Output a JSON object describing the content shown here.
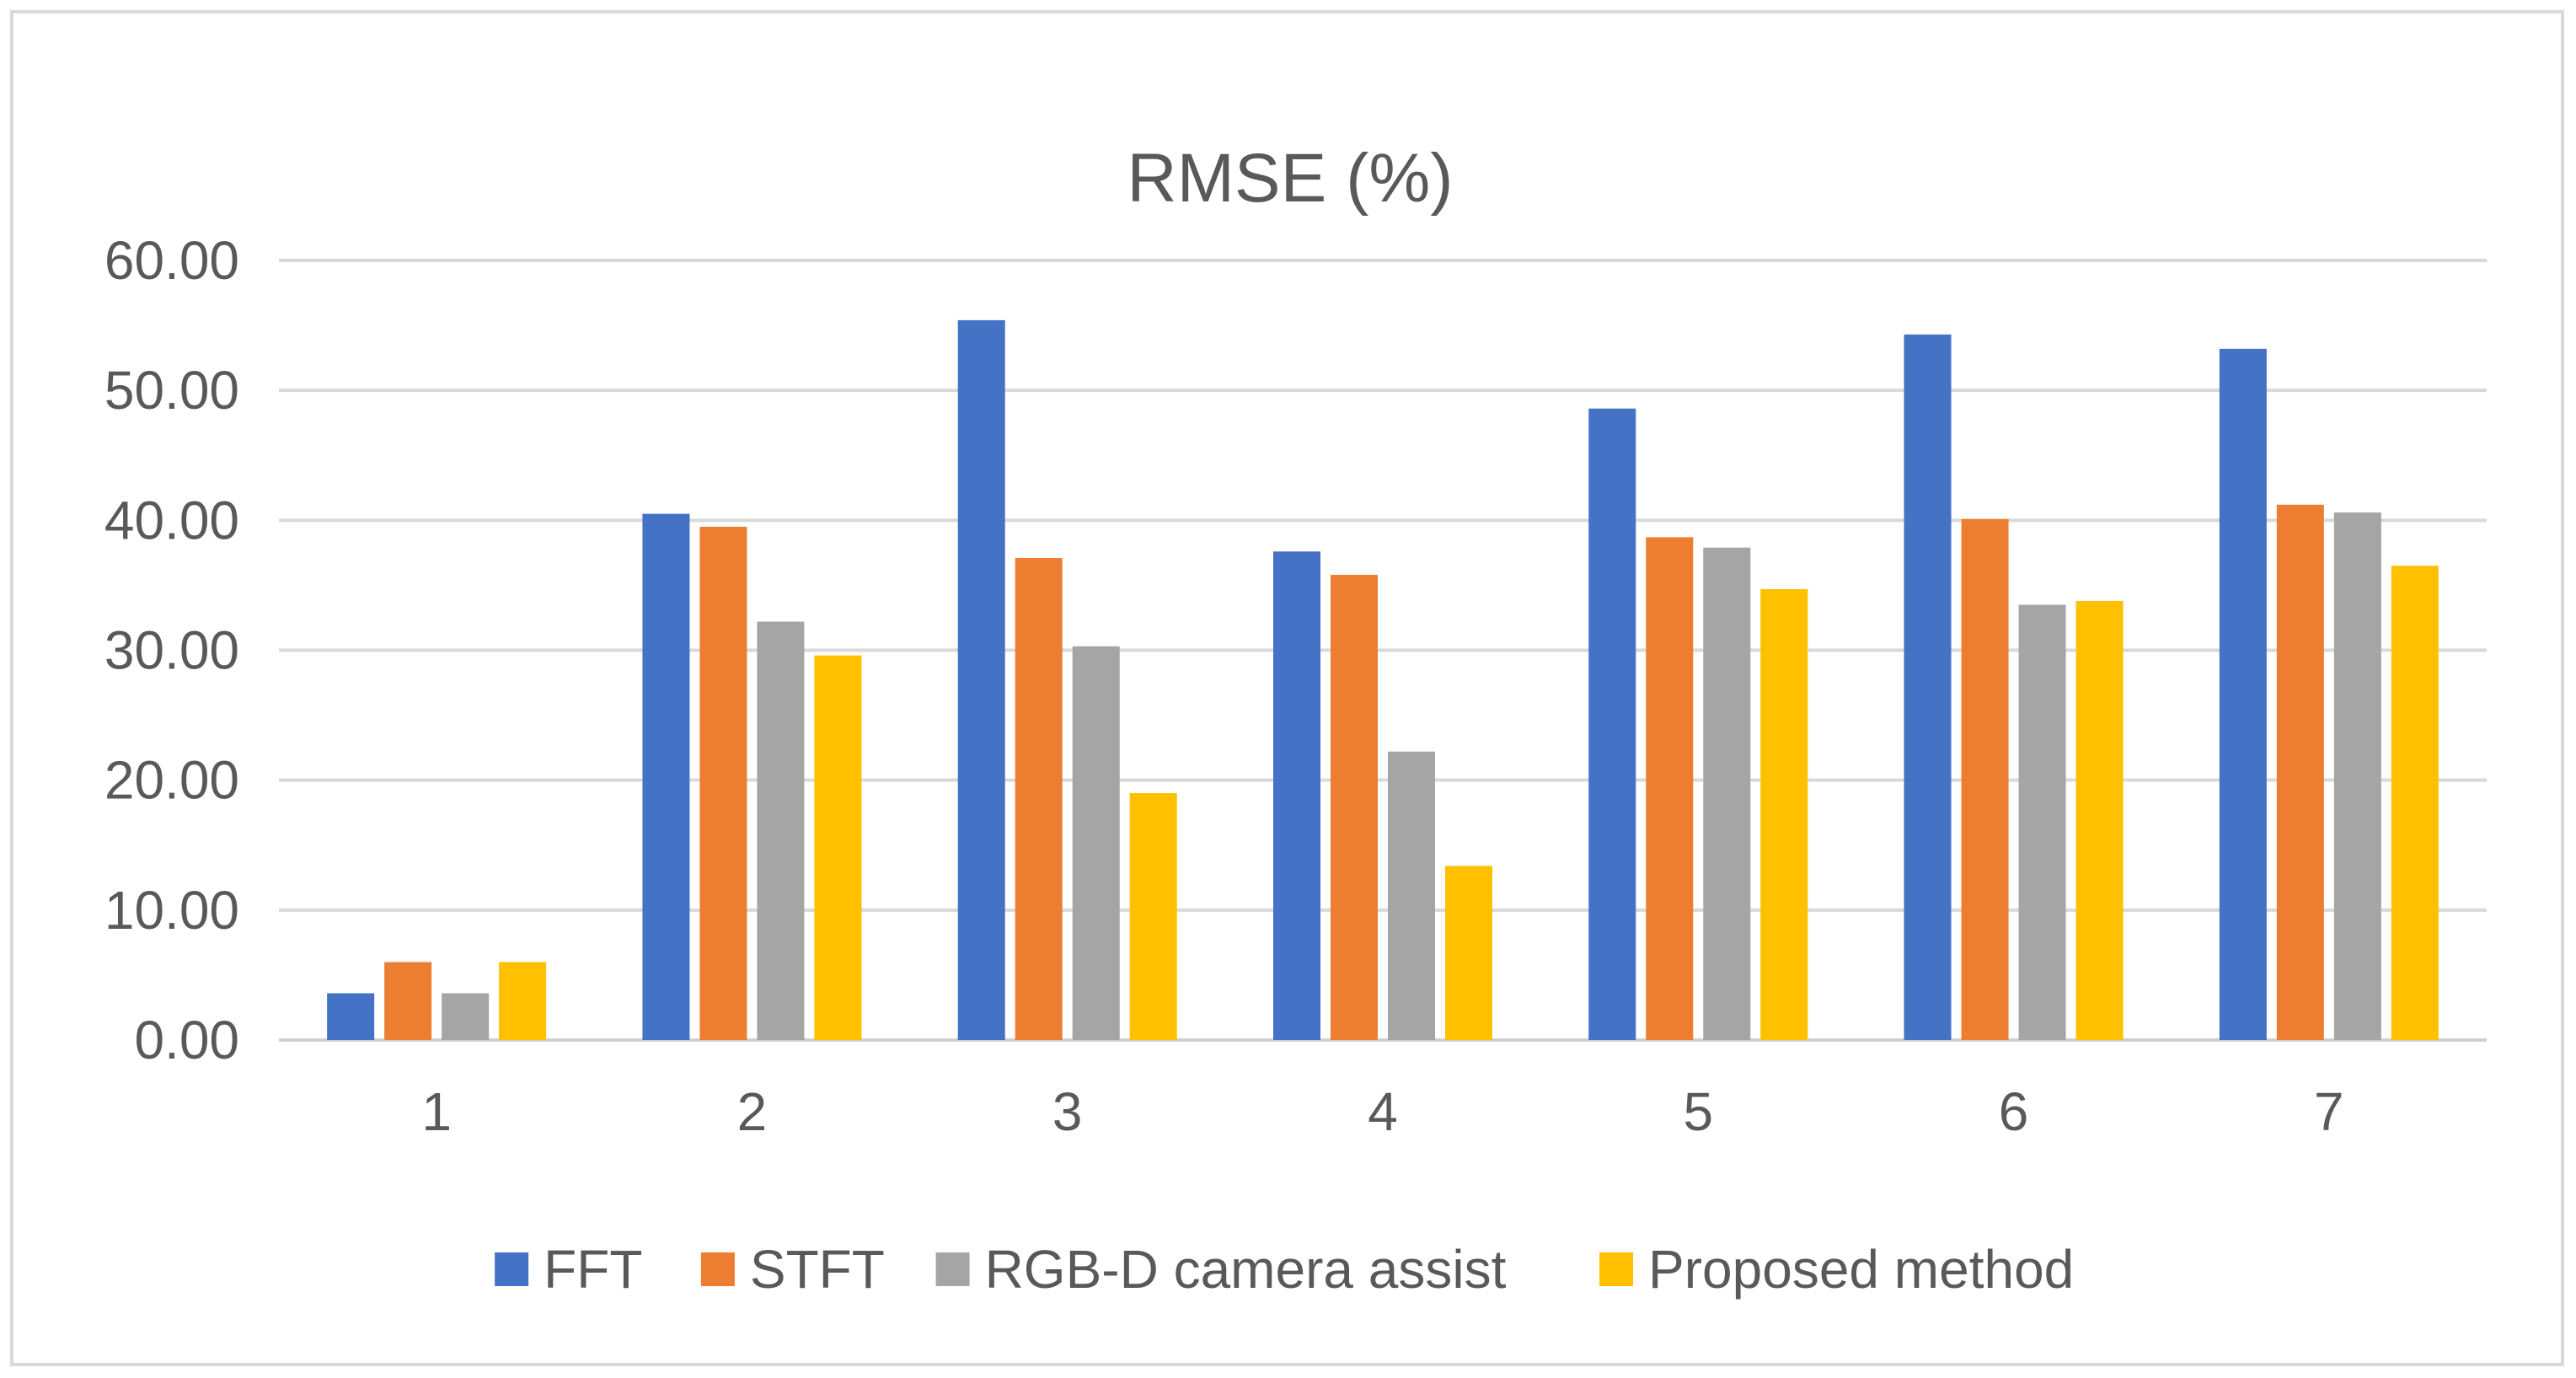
{
  "chart_data": {
    "type": "bar",
    "title": "RMSE (%)",
    "xlabel": "",
    "ylabel": "",
    "categories": [
      "1",
      "2",
      "3",
      "4",
      "5",
      "6",
      "7"
    ],
    "ylim": [
      0,
      60
    ],
    "yticks": [
      0,
      10,
      20,
      30,
      40,
      50,
      60
    ],
    "ytick_labels": [
      "0.00",
      "10.00",
      "20.00",
      "30.00",
      "40.00",
      "50.00",
      "60.00"
    ],
    "grid": true,
    "legend_position": "bottom",
    "series": [
      {
        "name": "FFT",
        "color": "#4472c4",
        "values": [
          3.6,
          40.5,
          55.4,
          37.6,
          48.6,
          54.3,
          53.2
        ]
      },
      {
        "name": "STFT",
        "color": "#ed7d31",
        "values": [
          6.0,
          39.5,
          37.1,
          35.8,
          38.7,
          40.1,
          41.2
        ]
      },
      {
        "name": "RGB-D camera assist",
        "color": "#a5a5a5",
        "values": [
          3.6,
          32.2,
          30.3,
          22.2,
          37.9,
          33.5,
          40.6
        ]
      },
      {
        "name": "Proposed method",
        "color": "#ffc000",
        "values": [
          6.0,
          29.6,
          19.0,
          13.4,
          34.7,
          33.8,
          36.5
        ]
      }
    ]
  }
}
